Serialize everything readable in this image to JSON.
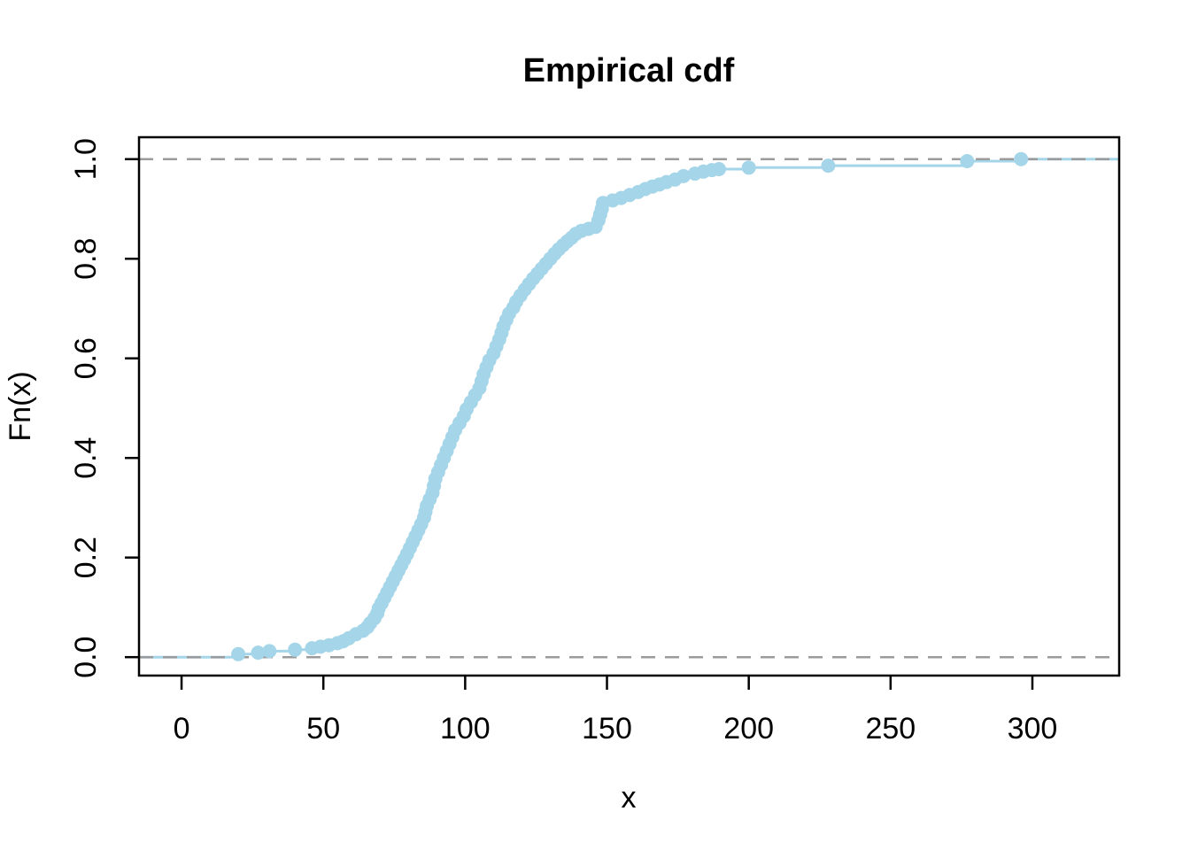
{
  "chart_data": {
    "type": "scatter",
    "plot_style": "ecdf-step",
    "title": "Empirical cdf",
    "xlabel": "x",
    "ylabel": "Fn(x)",
    "x_ticks": [
      0,
      50,
      100,
      150,
      200,
      250,
      300
    ],
    "y_ticks": [
      0.0,
      0.2,
      0.4,
      0.6,
      0.8,
      1.0
    ],
    "xlim": [
      -15.0,
      330.6
    ],
    "ylim": [
      -0.037,
      1.044
    ],
    "reference_lines_y": [
      0.0,
      1.0
    ],
    "legend": "none",
    "grid": "off",
    "colors": {
      "points": "#A5D5E8",
      "step_line": "#A5D5E8",
      "reference_line": "#9B9B9B",
      "axis": "#000000"
    },
    "ecdf_points": [
      [
        20,
        0.006
      ],
      [
        27,
        0.009
      ],
      [
        31,
        0.012
      ],
      [
        40,
        0.015
      ],
      [
        46,
        0.018
      ],
      [
        49,
        0.021
      ],
      [
        52,
        0.024
      ],
      [
        55,
        0.028
      ],
      [
        57,
        0.032
      ],
      [
        59,
        0.038
      ],
      [
        61.5,
        0.046
      ],
      [
        64,
        0.053
      ],
      [
        65.5,
        0.06
      ],
      [
        66.5,
        0.068
      ],
      [
        68,
        0.078
      ],
      [
        69,
        0.088
      ],
      [
        69.5,
        0.098
      ],
      [
        70.5,
        0.108
      ],
      [
        71.5,
        0.119
      ],
      [
        72.5,
        0.13
      ],
      [
        73.5,
        0.141
      ],
      [
        74.5,
        0.152
      ],
      [
        75.5,
        0.163
      ],
      [
        76.5,
        0.174
      ],
      [
        77.5,
        0.185
      ],
      [
        78.5,
        0.196
      ],
      [
        79.5,
        0.207
      ],
      [
        80.5,
        0.219
      ],
      [
        81.5,
        0.231
      ],
      [
        82.5,
        0.243
      ],
      [
        83.5,
        0.255
      ],
      [
        84.5,
        0.267
      ],
      [
        85.5,
        0.28
      ],
      [
        86,
        0.292
      ],
      [
        86.5,
        0.304
      ],
      [
        87.5,
        0.317
      ],
      [
        88.5,
        0.33
      ],
      [
        89,
        0.344
      ],
      [
        89.5,
        0.358
      ],
      [
        90.5,
        0.372
      ],
      [
        91.5,
        0.386
      ],
      [
        92.5,
        0.4
      ],
      [
        93.5,
        0.414
      ],
      [
        94.5,
        0.428
      ],
      [
        95.5,
        0.442
      ],
      [
        96.5,
        0.456
      ],
      [
        98,
        0.47
      ],
      [
        99.5,
        0.484
      ],
      [
        100.5,
        0.498
      ],
      [
        102,
        0.512
      ],
      [
        103.5,
        0.526
      ],
      [
        105,
        0.54
      ],
      [
        105.8,
        0.554
      ],
      [
        106.5,
        0.568
      ],
      [
        107.5,
        0.582
      ],
      [
        108.5,
        0.596
      ],
      [
        110,
        0.61
      ],
      [
        111,
        0.624
      ],
      [
        112,
        0.638
      ],
      [
        112.8,
        0.651
      ],
      [
        113.5,
        0.664
      ],
      [
        114.5,
        0.677
      ],
      [
        115.5,
        0.69
      ],
      [
        117,
        0.702
      ],
      [
        118,
        0.714
      ],
      [
        119.5,
        0.726
      ],
      [
        121,
        0.738
      ],
      [
        122.5,
        0.749
      ],
      [
        124,
        0.76
      ],
      [
        125.5,
        0.77
      ],
      [
        127,
        0.78
      ],
      [
        128.5,
        0.79
      ],
      [
        130,
        0.8
      ],
      [
        131.5,
        0.81
      ],
      [
        133,
        0.819
      ],
      [
        134.5,
        0.827
      ],
      [
        136,
        0.835
      ],
      [
        137.5,
        0.842
      ],
      [
        139,
        0.85
      ],
      [
        141,
        0.856
      ],
      [
        143.5,
        0.86
      ],
      [
        146,
        0.864
      ],
      [
        147,
        0.877
      ],
      [
        147.6,
        0.889
      ],
      [
        148.2,
        0.9
      ],
      [
        148.6,
        0.912
      ],
      [
        152,
        0.917
      ],
      [
        155,
        0.922
      ],
      [
        158,
        0.928
      ],
      [
        161,
        0.934
      ],
      [
        163.5,
        0.94
      ],
      [
        166,
        0.945
      ],
      [
        168.5,
        0.949
      ],
      [
        171,
        0.954
      ],
      [
        174,
        0.959
      ],
      [
        177,
        0.966
      ],
      [
        181,
        0.971
      ],
      [
        184,
        0.975
      ],
      [
        187,
        0.978
      ],
      [
        189.5,
        0.98
      ],
      [
        200,
        0.983
      ],
      [
        228,
        0.987
      ],
      [
        277,
        0.996
      ],
      [
        296,
        1.0
      ]
    ]
  }
}
